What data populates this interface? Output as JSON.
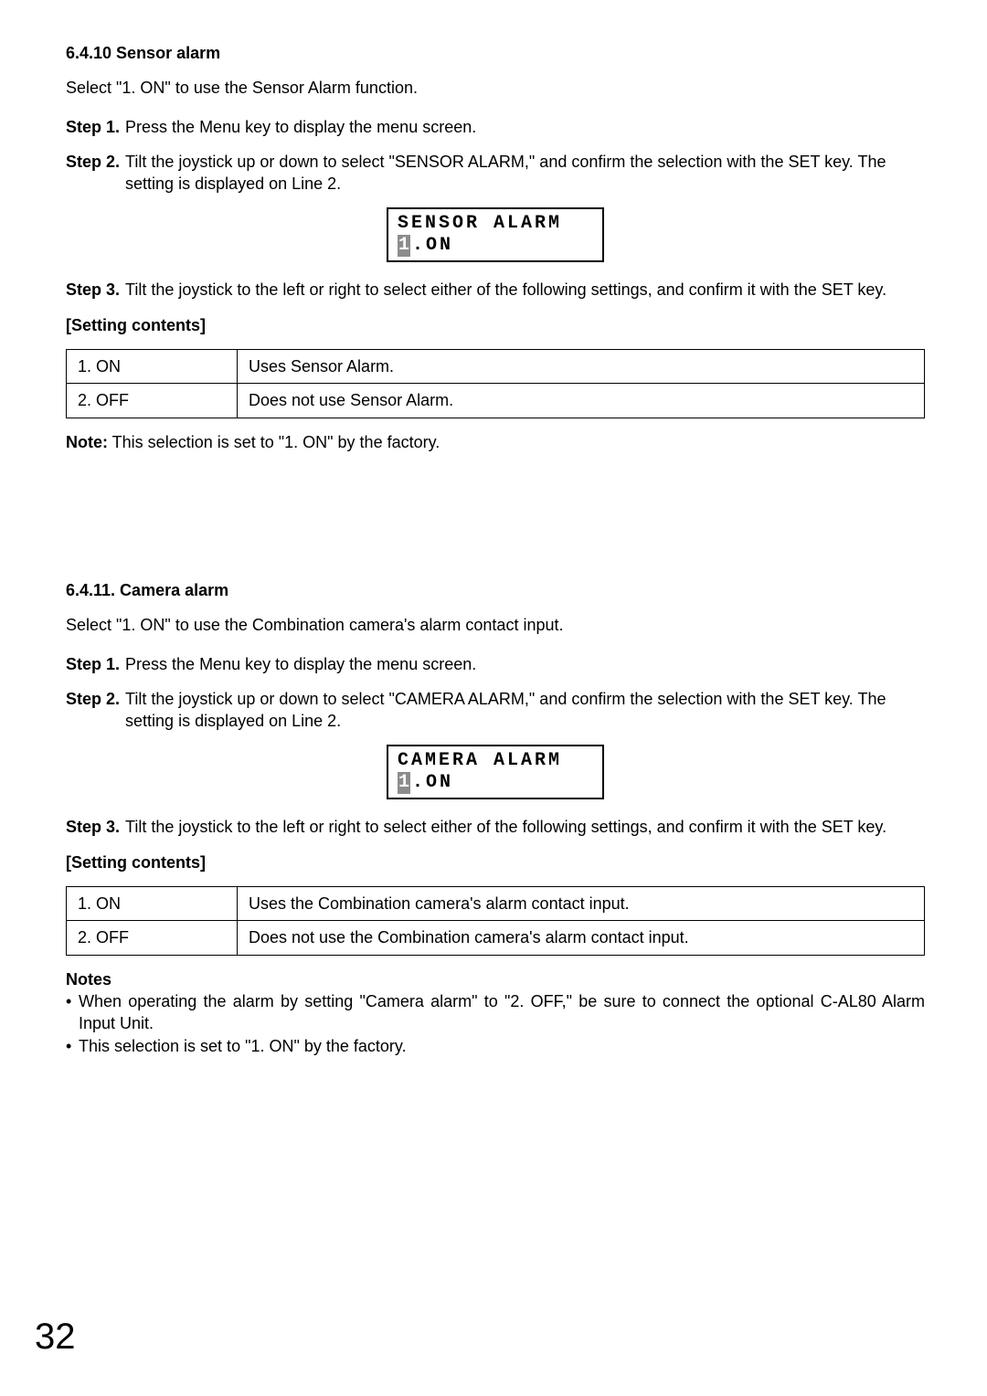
{
  "section1": {
    "title": "6.4.10 Sensor alarm",
    "intro": "Select \"1. ON\" to use the Sensor Alarm function.",
    "step1_label": "Step 1.",
    "step1_body": "Press the Menu key to display the menu screen.",
    "step2_label": "Step 2.",
    "step2_body": "Tilt the joystick up or down to select \"SENSOR ALARM,\" and confirm the selection with the SET key. The setting is displayed on Line 2.",
    "lcd_line1": "SENSOR ALARM",
    "lcd_hl": "1",
    "lcd_rest": ".ON",
    "step3_label": "Step 3.",
    "step3_body": "Tilt the joystick to the left or right to select either of the following settings, and confirm it with the SET key.",
    "settings_title": "[Setting contents]",
    "row1c1": "1. ON",
    "row1c2": "Uses Sensor Alarm.",
    "row2c1": "2. OFF",
    "row2c2": "Does not use Sensor Alarm.",
    "note_label": "Note:",
    "note_body": " This selection is set to \"1. ON\" by the factory."
  },
  "section2": {
    "title": "6.4.11. Camera alarm",
    "intro": "Select \"1. ON\" to use the Combination camera's alarm contact input.",
    "step1_label": "Step 1.",
    "step1_body": "Press the Menu key to display the menu screen.",
    "step2_label": "Step 2.",
    "step2_body": "Tilt the joystick up or down to select \"CAMERA ALARM,\" and confirm the selection with the SET key. The setting is displayed on Line 2.",
    "lcd_line1": "CAMERA ALARM",
    "lcd_hl": "1",
    "lcd_rest": ".ON",
    "step3_label": "Step 3.",
    "step3_body": "Tilt the joystick to the left or right to select either of the following settings, and confirm it with the SET key.",
    "settings_title": "[Setting contents]",
    "row1c1": "1. ON",
    "row1c2": "Uses the Combination camera's alarm contact input.",
    "row2c1": "2. OFF",
    "row2c2": "Does not use the Combination camera's alarm contact input.",
    "notes_label": "Notes",
    "note1": "When operating the alarm by setting \"Camera alarm\" to \"2. OFF,\" be sure to connect the optional C-AL80 Alarm Input Unit.",
    "note2": "This selection is set to \"1. ON\" by the factory."
  },
  "page_number": "32"
}
